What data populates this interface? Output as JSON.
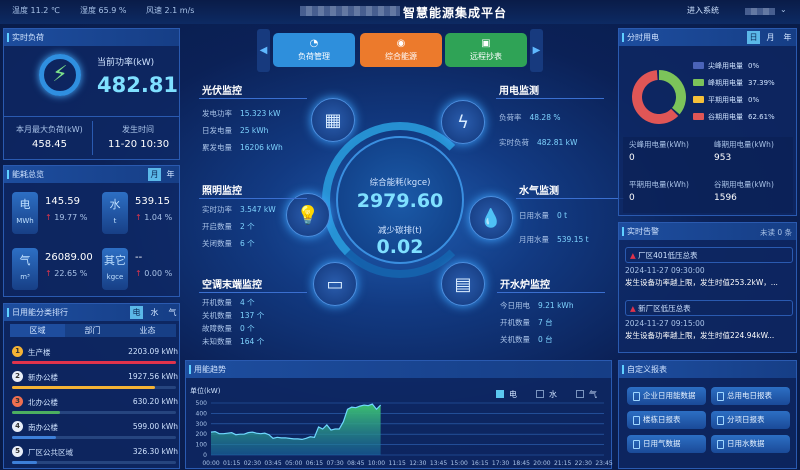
{
  "header": {
    "title": "智慧能源集成平台",
    "weather": [
      "温度 11.2 ℃",
      "湿度 65.9 %",
      "风速 2.1 m/s"
    ],
    "enter_label": "进入系统"
  },
  "realtime_load": {
    "title": "实时负荷",
    "power_label": "当前功率(kW)",
    "power_value": "482.81",
    "max_label": "本月最大负荷(kW)",
    "max_value": "458.45",
    "time_label": "发生时间",
    "time_value": "11-20 10:30"
  },
  "overview": {
    "title": "能耗总览",
    "tabs": [
      "月",
      "年"
    ],
    "items": [
      {
        "name": "电",
        "unit": "MWh",
        "value": "145.59",
        "change": "19.77 %"
      },
      {
        "name": "水",
        "unit": "t",
        "value": "539.15",
        "change": "1.04 %"
      },
      {
        "name": "气",
        "unit": "m³",
        "value": "26089.00",
        "change": "22.65 %"
      },
      {
        "name": "其它",
        "unit": "kgce",
        "value": "--",
        "change": "0.00 %"
      }
    ]
  },
  "ranking": {
    "title": "日用能分类排行",
    "tabs": [
      "电",
      "水",
      "气"
    ],
    "subtabs": [
      "区域",
      "部门",
      "业态"
    ],
    "items": [
      {
        "rank": "1",
        "name": "生产楼",
        "value": "2203.09 kWh",
        "pct": 1.0,
        "color": "#e0334b"
      },
      {
        "rank": "2",
        "name": "新办公楼",
        "value": "1927.56 kWh",
        "pct": 0.87,
        "color": "#f5b335"
      },
      {
        "rank": "3",
        "name": "北办公楼",
        "value": "630.20 kWh",
        "pct": 0.29,
        "color": "#4caf60"
      },
      {
        "rank": "4",
        "name": "南办公楼",
        "value": "599.00 kWh",
        "pct": 0.27,
        "color": "#3d7fd8"
      },
      {
        "rank": "5",
        "name": "厂区公共区域",
        "value": "326.30 kWh",
        "pct": 0.15,
        "color": "#3d7fd8"
      }
    ]
  },
  "nav": {
    "buttons": [
      {
        "label": "负荷管理",
        "color": "#2e8fdc"
      },
      {
        "label": "综合能源",
        "color": "#ec7a2c"
      },
      {
        "label": "远程抄表",
        "color": "#2fa356"
      }
    ]
  },
  "center": {
    "energy_label": "综合能耗(kgce)",
    "energy_value": "2979.60",
    "carbon_label": "减少碳排(t)",
    "carbon_value": "0.02"
  },
  "pv": {
    "title": "光伏监控",
    "rows": [
      [
        "发电功率",
        "15.323 kW"
      ],
      [
        "日发电量",
        "25 kWh"
      ],
      [
        "累发电量",
        "16206 kWh"
      ]
    ]
  },
  "power": {
    "title": "用电监测",
    "rows": [
      [
        "负荷率",
        "48.28 %"
      ],
      [
        "实时负荷",
        "482.81 kW"
      ]
    ]
  },
  "lighting": {
    "title": "照明监控",
    "rows": [
      [
        "实时功率",
        "3.547 kW"
      ],
      [
        "开启数量",
        "2 个"
      ],
      [
        "关闭数量",
        "6 个"
      ]
    ]
  },
  "water": {
    "title": "水气监测",
    "rows": [
      [
        "日用水量",
        "0 t"
      ],
      [
        "月用水量",
        "539.15 t"
      ]
    ]
  },
  "ac": {
    "title": "空调末端监控",
    "rows": [
      [
        "开机数量",
        "4 个"
      ],
      [
        "关机数量",
        "137 个"
      ],
      [
        "故障数量",
        "0 个"
      ],
      [
        "未知数量",
        "164 个"
      ]
    ]
  },
  "boiler": {
    "title": "开水炉监控",
    "rows": [
      [
        "今日用电",
        "9.21 kWh"
      ],
      [
        "开机数量",
        "7 台"
      ],
      [
        "关机数量",
        "0 台"
      ]
    ]
  },
  "tou": {
    "title": "分时用电",
    "tabs": [
      "日",
      "月",
      "年"
    ],
    "legend": [
      {
        "label": "尖峰用电量",
        "pct": "0%",
        "value": 0,
        "color": "#4a63b8"
      },
      {
        "label": "峰期用电量",
        "pct": "37.39%",
        "value": 37.39,
        "color": "#7cc35a"
      },
      {
        "label": "平期用电量",
        "pct": "0%",
        "value": 0,
        "color": "#f5c03a"
      },
      {
        "label": "谷期用电量",
        "pct": "62.61%",
        "value": 62.61,
        "color": "#e05656"
      }
    ],
    "stats": [
      {
        "label": "尖峰用电量(kWh)",
        "value": "0"
      },
      {
        "label": "峰期用电量(kWh)",
        "value": "953"
      },
      {
        "label": "平期用电量(kWh)",
        "value": "0"
      },
      {
        "label": "谷期用电量(kWh)",
        "value": "1596"
      }
    ]
  },
  "alarms": {
    "title": "实时告警",
    "unread": "未读 0 条",
    "items": [
      {
        "name": "厂区401低压总表",
        "time": "2024-11-27 09:30:00",
        "msg": "发生设备功率越上限，发生时值253.2kW，..."
      },
      {
        "name": "新厂区低压总表",
        "time": "2024-11-27 09:15:00",
        "msg": "发生设备功率越上限，发生时值224.94kW..."
      }
    ]
  },
  "reports": {
    "title": "自定义报表",
    "buttons": [
      "企业日用能数据",
      "总用电日报表",
      "楼栋日报表",
      "分项日报表",
      "日用气数据",
      "日用水数据"
    ]
  },
  "chart_data": {
    "type": "area",
    "title": "用能趋势",
    "ylabel": "单位(kW)",
    "ylim": [
      0,
      500
    ],
    "yticks": [
      0,
      100,
      200,
      300,
      400,
      500
    ],
    "legend": [
      {
        "label": "电",
        "active": true
      },
      {
        "label": "水",
        "active": false
      },
      {
        "label": "气",
        "active": false
      }
    ],
    "xticks": [
      "00:00",
      "01:15",
      "02:30",
      "03:45",
      "05:00",
      "06:15",
      "07:30",
      "08:45",
      "10:00",
      "11:15",
      "12:30",
      "13:45",
      "15:00",
      "16:15",
      "17:30",
      "18:45",
      "20:00",
      "21:15",
      "22:30",
      "23:45"
    ],
    "series": [
      {
        "name": "电",
        "x": [
          "00:00",
          "00:15",
          "00:30",
          "00:45",
          "01:00",
          "01:15",
          "01:30",
          "01:45",
          "02:00",
          "02:15",
          "02:30",
          "02:45",
          "03:00",
          "03:15",
          "03:30",
          "03:45",
          "04:00",
          "04:15",
          "04:30",
          "04:45",
          "05:00",
          "05:15",
          "05:30",
          "05:45",
          "06:00",
          "06:15",
          "06:30",
          "06:45",
          "07:00",
          "07:15",
          "07:30",
          "07:45",
          "08:00",
          "08:15",
          "08:30",
          "08:45",
          "09:00",
          "09:15",
          "09:30",
          "09:45",
          "10:00",
          "10:15"
        ],
        "values": [
          220,
          225,
          205,
          205,
          210,
          215,
          195,
          200,
          200,
          215,
          220,
          210,
          205,
          210,
          195,
          160,
          170,
          165,
          165,
          160,
          155,
          155,
          150,
          160,
          175,
          170,
          270,
          250,
          290,
          240,
          250,
          250,
          320,
          440,
          460,
          455,
          470,
          480,
          475,
          490,
          440,
          480
        ]
      }
    ]
  }
}
